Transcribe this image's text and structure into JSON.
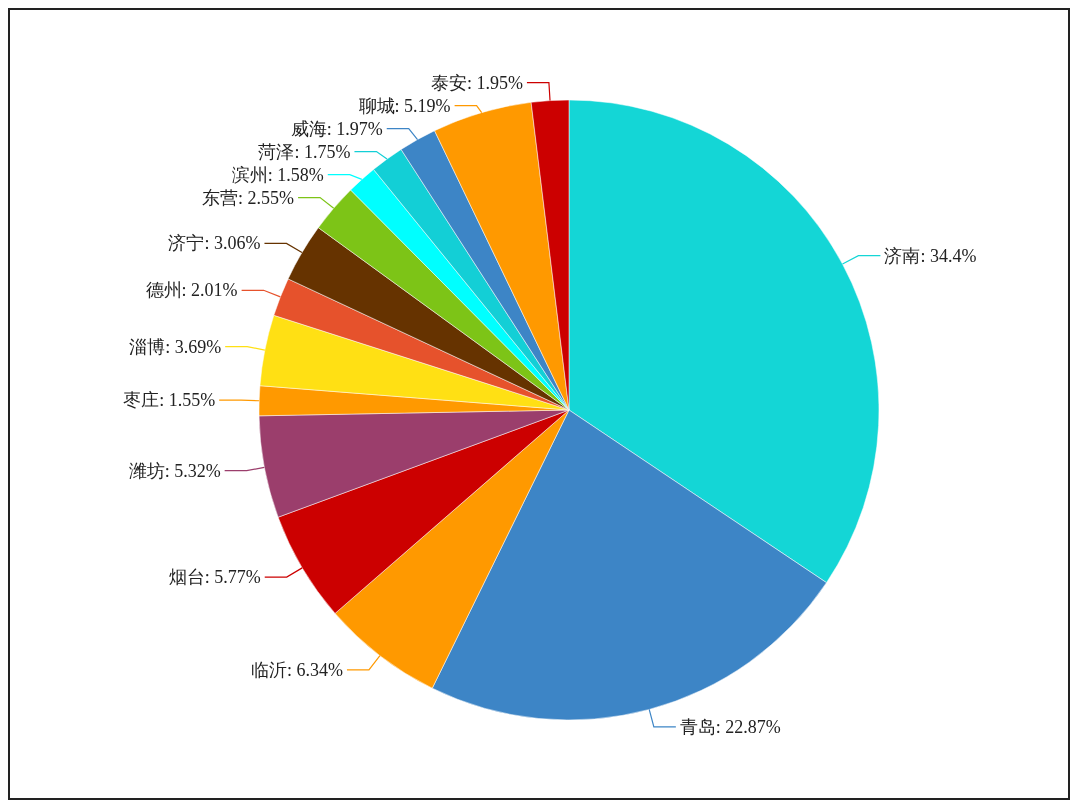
{
  "chart_data": {
    "type": "pie",
    "categories": [
      "济南",
      "青岛",
      "临沂",
      "烟台",
      "潍坊",
      "枣庄",
      "淄博",
      "德州",
      "济宁",
      "东营",
      "滨州",
      "菏泽",
      "威海",
      "聊城",
      "泰安"
    ],
    "values": [
      34.4,
      22.87,
      6.34,
      5.77,
      5.32,
      1.55,
      3.69,
      2.01,
      3.06,
      2.55,
      1.58,
      1.75,
      1.97,
      5.19,
      1.95
    ],
    "value_labels": [
      "34.4%",
      "22.87%",
      "6.34%",
      "5.77%",
      "5.32%",
      "1.55%",
      "3.69%",
      "2.01%",
      "3.06%",
      "2.55%",
      "1.58%",
      "1.75%",
      "1.97%",
      "5.19%",
      "1.95%"
    ],
    "colors": [
      "#14d6d6",
      "#3d85c6",
      "#ff9900",
      "#cc0000",
      "#9b3e6c",
      "#ff9900",
      "#ffe014",
      "#e6522c",
      "#663300",
      "#7dc417",
      "#00ffff",
      "#13cfd6",
      "#3d85c6",
      "#ff9900",
      "#cc0000"
    ]
  }
}
